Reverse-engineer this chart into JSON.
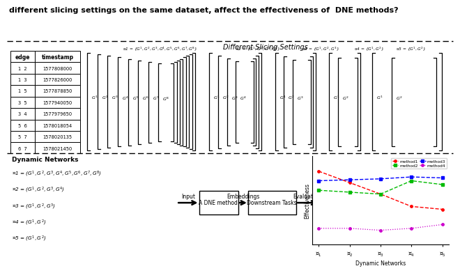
{
  "title_text": "different slicing settings on the same dataset, affect the effectiveness of  DNE methods?",
  "top_section_title": "Different Slicing Settings",
  "table_headers": [
    "edge",
    "timestamp"
  ],
  "table_rows": [
    [
      "1  2",
      "1577808000"
    ],
    [
      "1  3",
      "1577826000"
    ],
    [
      "1  5",
      "1577878850"
    ],
    [
      "3  5",
      "1577940050"
    ],
    [
      "3  4",
      "1577979650"
    ],
    [
      "5  6",
      "1578018054"
    ],
    [
      "5  7",
      "1578020135"
    ],
    [
      "6  7",
      "1578021450"
    ]
  ],
  "method_data": {
    "x": [
      1,
      2,
      3,
      4,
      5
    ],
    "method1": [
      0.82,
      0.7,
      0.58,
      0.45,
      0.42
    ],
    "method2": [
      0.62,
      0.6,
      0.58,
      0.72,
      0.68
    ],
    "method3": [
      0.72,
      0.73,
      0.74,
      0.76,
      0.75
    ],
    "method4": [
      0.22,
      0.22,
      0.2,
      0.22,
      0.26
    ],
    "colors": {
      "method1": "#ff0000",
      "method2": "#00bb00",
      "method3": "#0000ff",
      "method4": "#cc00cc"
    },
    "x_labels": [
      "$\\mathcal{G}_1$",
      "$\\mathcal{G}_2$",
      "$\\mathcal{G}_3$",
      "$\\mathcal{G}_4$",
      "$\\mathcal{G}_5$"
    ]
  },
  "bg_color": "#ffffff",
  "dne_box_text": "A DNE method",
  "downstream_box_text": "Downstream Tasks",
  "pipeline_labels": [
    "Input",
    "Embeddings",
    "Evaluation"
  ],
  "dynamic_networks_title": "Dynamic Networks",
  "dn_lines": [
    "$\\mathcal{G}$1 = ($G^1,G^2,G^3,G^4,G^5,G^6,G^7,G^8$)",
    "$\\mathcal{G}$2 = ($G^1,G^2,G^3,G^4$)",
    "$\\mathcal{G}$3 = ($G^1,G^2,G^3$)",
    "$\\mathcal{G}$4 = ($G^1,G^2$)",
    "$\\mathcal{G}$5 = ($G^1,G^2$)"
  ]
}
